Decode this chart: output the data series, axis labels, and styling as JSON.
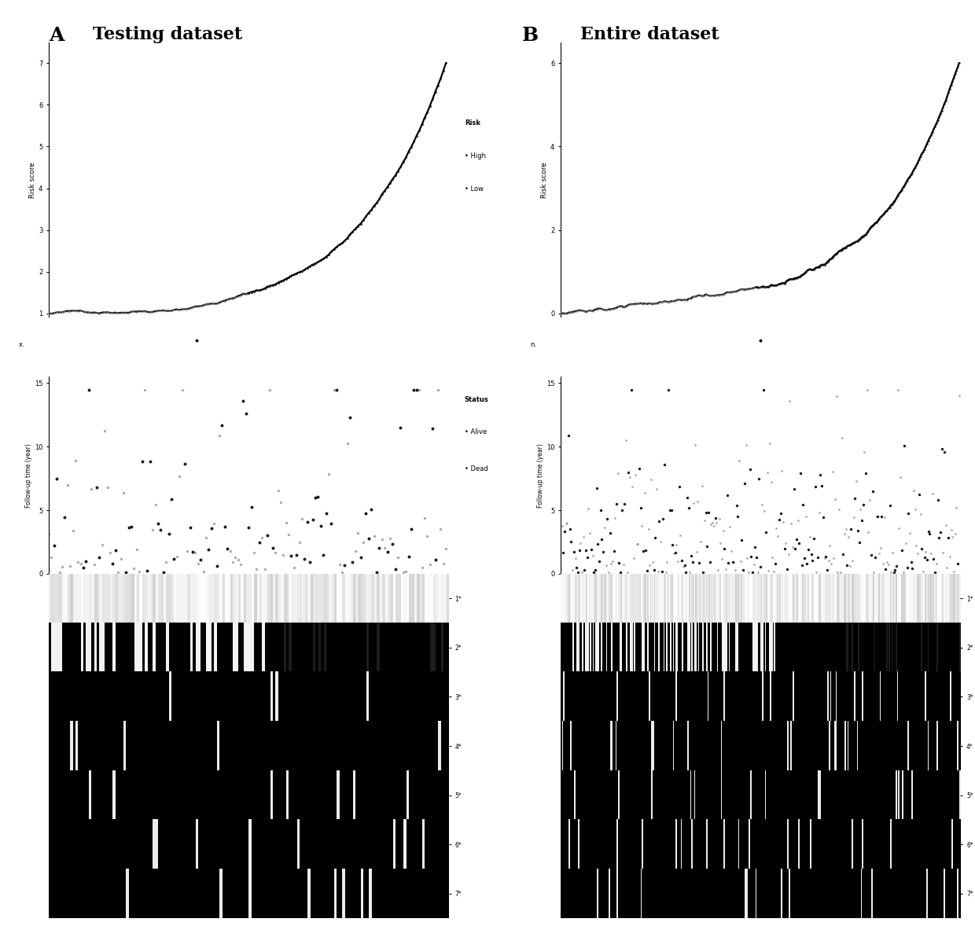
{
  "title_A_letter": "A",
  "title_A_text": "Testing dataset",
  "title_B_letter": "B",
  "title_B_text": "Entire dataset",
  "n_A": 150,
  "n_B": 300,
  "n_genes": 7,
  "gene_labels": [
    "1*",
    "2*",
    "3*",
    "4*",
    "5*",
    "6*",
    "7*"
  ],
  "risk_ylabel": "Risk score",
  "followup_ylabel": "Follow-up time (year)",
  "legend_risk_title": "Risk",
  "legend_risk_high": "High",
  "legend_risk_low": "Low",
  "legend_status_title": "Status",
  "legend_status_alive": "Alive",
  "legend_status_dead": "Dead",
  "A_risk_ylim": [
    1.0,
    7.0
  ],
  "A_risk_yticks": [
    1,
    2,
    3,
    4,
    5,
    6,
    7
  ],
  "B_risk_ylim": [
    0.0,
    6.0
  ],
  "B_risk_yticks": [
    0,
    2,
    4,
    6
  ],
  "followup_ylim": [
    0,
    15
  ],
  "followup_yticks": [
    0,
    5,
    10,
    15
  ],
  "bg_color": "#ffffff",
  "line_color": "#000000",
  "dot_high_color": "#000000",
  "dot_low_color": "#555555",
  "alive_color": "#888888",
  "dead_color": "#000000",
  "heatmap_bg": "#000000"
}
